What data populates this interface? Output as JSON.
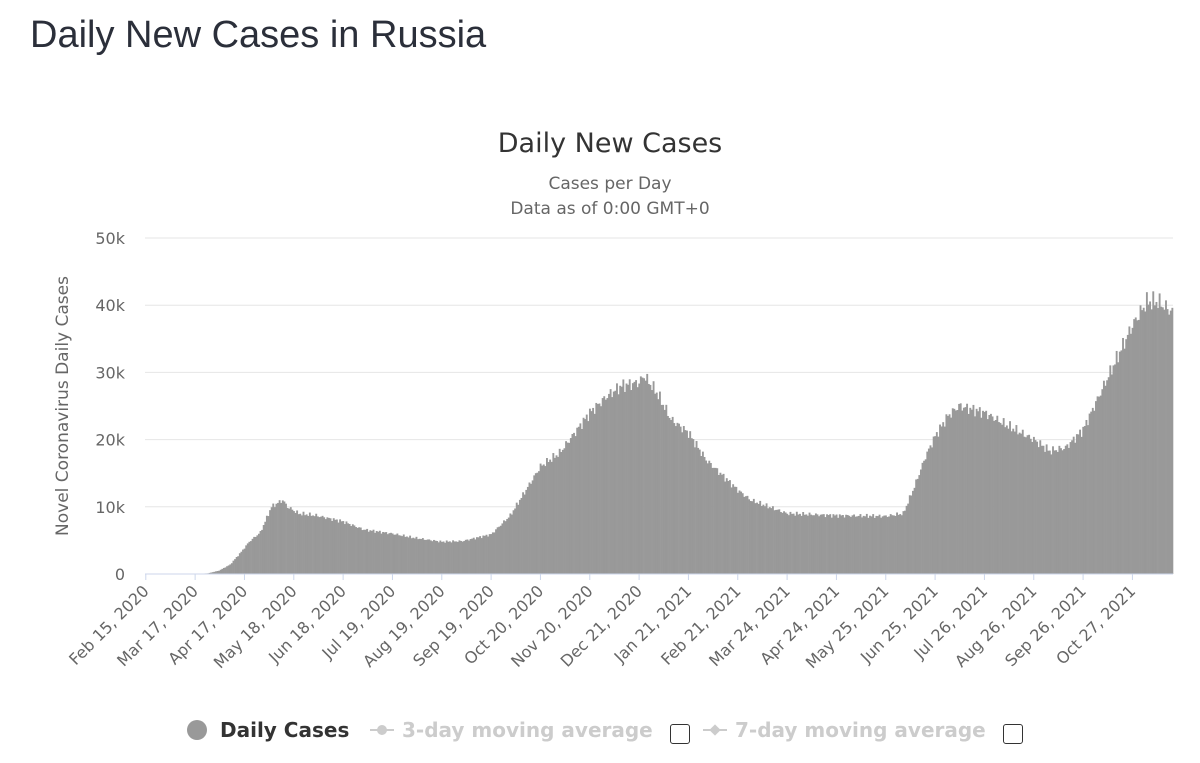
{
  "page": {
    "title": "Daily New Cases in Russia"
  },
  "chart_data": {
    "type": "bar",
    "title": "Daily New Cases",
    "subtitle": "Cases per Day",
    "subtitle2": "Data as of 0:00 GMT+0",
    "xlabel": "",
    "ylabel": "Novel Coronavirus Daily Cases",
    "ylim": [
      0,
      50000
    ],
    "yticks": [
      0,
      10000,
      20000,
      30000,
      40000,
      50000
    ],
    "ytick_labels": [
      "0",
      "10k",
      "20k",
      "30k",
      "40k",
      "50k"
    ],
    "x_start": "2020-02-15",
    "x_end": "2021-11-21",
    "xtick_labels": [
      "Feb 15, 2020",
      "Mar 17, 2020",
      "Apr 17, 2020",
      "May 18, 2020",
      "Jun 18, 2020",
      "Jul 19, 2020",
      "Aug 19, 2020",
      "Sep 19, 2020",
      "Oct 20, 2020",
      "Nov 20, 2020",
      "Dec 21, 2020",
      "Jan 21, 2021",
      "Feb 21, 2021",
      "Mar 24, 2021",
      "Apr 24, 2021",
      "May 25, 2021",
      "Jun 25, 2021",
      "Jul 26, 2021",
      "Aug 26, 2021",
      "Sep 26, 2021",
      "Oct 27, 2021"
    ],
    "grid": true,
    "legend_position": "bottom-center",
    "colors": {
      "bars": "#999999",
      "grid": "#e6e6e6",
      "axis_text": "#666666",
      "title_text": "#333333"
    },
    "series": [
      {
        "name": "Daily Cases",
        "points": [
          [
            "2020-02-15",
            0
          ],
          [
            "2020-03-01",
            0
          ],
          [
            "2020-03-17",
            20
          ],
          [
            "2020-03-25",
            100
          ],
          [
            "2020-04-01",
            500
          ],
          [
            "2020-04-08",
            1400
          ],
          [
            "2020-04-15",
            3300
          ],
          [
            "2020-04-20",
            4800
          ],
          [
            "2020-04-27",
            6200
          ],
          [
            "2020-05-04",
            10000
          ],
          [
            "2020-05-11",
            11000
          ],
          [
            "2020-05-14",
            10000
          ],
          [
            "2020-05-21",
            9000
          ],
          [
            "2020-06-01",
            8700
          ],
          [
            "2020-06-18",
            7800
          ],
          [
            "2020-07-01",
            6600
          ],
          [
            "2020-07-19",
            6000
          ],
          [
            "2020-08-01",
            5400
          ],
          [
            "2020-08-19",
            4800
          ],
          [
            "2020-09-01",
            4900
          ],
          [
            "2020-09-19",
            5900
          ],
          [
            "2020-10-01",
            8700
          ],
          [
            "2020-10-20",
            16000
          ],
          [
            "2020-11-01",
            18000
          ],
          [
            "2020-11-20",
            24000
          ],
          [
            "2020-12-01",
            26500
          ],
          [
            "2020-12-10",
            28000
          ],
          [
            "2020-12-21",
            28500
          ],
          [
            "2020-12-24",
            29500
          ],
          [
            "2021-01-01",
            27000
          ],
          [
            "2021-01-10",
            23000
          ],
          [
            "2021-01-21",
            21000
          ],
          [
            "2021-02-01",
            17000
          ],
          [
            "2021-02-21",
            12500
          ],
          [
            "2021-03-01",
            11000
          ],
          [
            "2021-03-24",
            9000
          ],
          [
            "2021-04-24",
            8700
          ],
          [
            "2021-05-25",
            8600
          ],
          [
            "2021-06-05",
            9000
          ],
          [
            "2021-06-12",
            13000
          ],
          [
            "2021-06-19",
            17500
          ],
          [
            "2021-06-25",
            20500
          ],
          [
            "2021-07-03",
            23500
          ],
          [
            "2021-07-10",
            25000
          ],
          [
            "2021-07-18",
            24500
          ],
          [
            "2021-07-26",
            24000
          ],
          [
            "2021-08-10",
            22000
          ],
          [
            "2021-08-26",
            20000
          ],
          [
            "2021-09-05",
            18300
          ],
          [
            "2021-09-15",
            18800
          ],
          [
            "2021-09-26",
            21500
          ],
          [
            "2021-10-05",
            26000
          ],
          [
            "2021-10-15",
            31000
          ],
          [
            "2021-10-27",
            37000
          ],
          [
            "2021-11-05",
            40500
          ],
          [
            "2021-11-12",
            40500
          ],
          [
            "2021-11-21",
            39000
          ]
        ]
      }
    ]
  },
  "legend": {
    "daily_cases": "Daily Cases",
    "avg3": "3-day moving average",
    "avg7": "7-day moving average"
  }
}
